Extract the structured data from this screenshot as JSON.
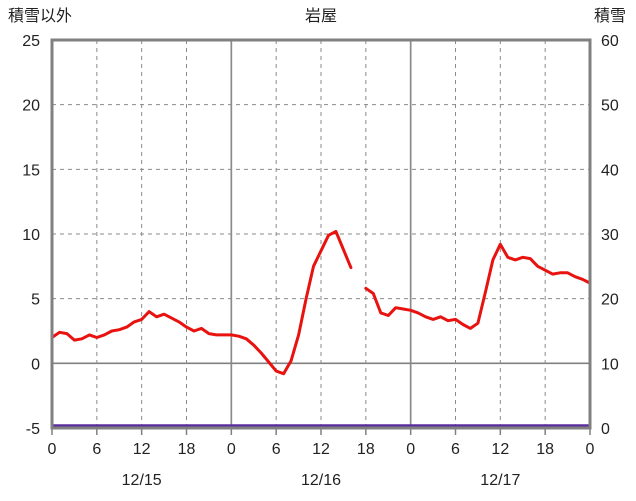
{
  "chart_data": {
    "type": "line",
    "title": "岩屋",
    "left_axis": {
      "title": "積雪以外",
      "min": -5,
      "max": 25,
      "ticks": [
        25,
        20,
        15,
        10,
        5,
        0,
        -5
      ],
      "zero_line_value": 0
    },
    "right_axis": {
      "title": "積雪",
      "min": 0,
      "max": 60,
      "ticks": [
        60,
        50,
        40,
        30,
        20,
        10,
        0
      ]
    },
    "x_axis": {
      "range_hours": [
        0,
        72
      ],
      "tick_hours": [
        0,
        6,
        12,
        18,
        24,
        30,
        36,
        42,
        48,
        54,
        60,
        66,
        72
      ],
      "tick_labels": [
        "0",
        "6",
        "12",
        "18",
        "0",
        "6",
        "12",
        "18",
        "0",
        "6",
        "12",
        "18",
        "0"
      ],
      "solid_hours": [
        24,
        48
      ],
      "date_labels": [
        {
          "label": "12/15",
          "center_hour": 12
        },
        {
          "label": "12/16",
          "center_hour": 36
        },
        {
          "label": "12/17",
          "center_hour": 60
        }
      ]
    },
    "series": [
      {
        "key": "temperature",
        "name": "積雪以外",
        "axis": "left",
        "color": "#e8120f",
        "values": [
          2.0,
          2.4,
          2.3,
          1.8,
          1.9,
          2.2,
          2.0,
          2.2,
          2.5,
          2.6,
          2.8,
          3.2,
          3.4,
          4.0,
          3.6,
          3.8,
          3.5,
          3.2,
          2.8,
          2.5,
          2.7,
          2.3,
          2.2,
          2.2,
          2.2,
          2.1,
          1.9,
          1.4,
          0.8,
          0.1,
          -0.6,
          -0.8,
          0.2,
          2.2,
          5.0,
          7.5,
          8.7,
          9.9,
          10.2,
          8.8,
          7.4,
          null,
          5.8,
          5.4,
          3.9,
          3.7,
          4.3,
          4.2,
          4.1,
          3.9,
          3.6,
          3.4,
          3.6,
          3.3,
          3.4,
          3.0,
          2.7,
          3.1,
          5.5,
          8.0,
          9.2,
          8.2,
          8.0,
          8.2,
          8.1,
          7.5,
          7.2,
          6.9,
          7.0,
          7.0,
          6.7,
          6.5,
          6.2
        ]
      },
      {
        "key": "snow-depth",
        "name": "積雪",
        "axis": "right",
        "color": "#5a2d9e",
        "constant_value": 0
      }
    ],
    "grid": true,
    "legend": "none",
    "colors": {
      "border": "#808080",
      "grid": "#8a8a8a",
      "zero_line": "#808080",
      "text": "#222222",
      "background": "#ffffff"
    }
  }
}
